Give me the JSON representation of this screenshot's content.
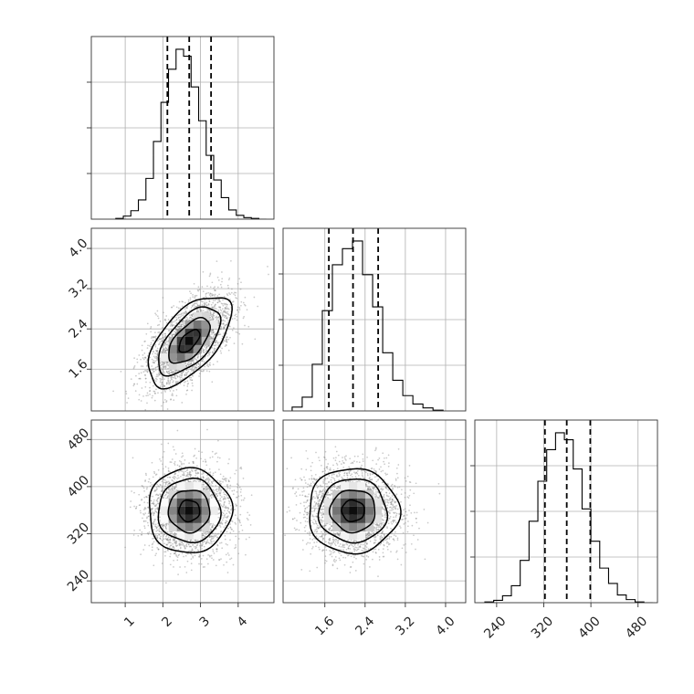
{
  "chart_data": {
    "type": "corner",
    "grid": true,
    "parameters": [
      {
        "label": "",
        "range": [
          0.1,
          4.95
        ],
        "ticks": [
          1,
          2,
          3,
          4
        ],
        "tick_labels": [
          "1",
          "2",
          "3",
          "4"
        ],
        "quantiles": [
          2.12,
          2.7,
          3.28
        ],
        "hist": {
          "bins": [
            0.75,
            0.95,
            1.15,
            1.35,
            1.55,
            1.75,
            1.95,
            2.15,
            2.35,
            2.55,
            2.75,
            2.95,
            3.15,
            3.35,
            3.55,
            3.75,
            3.95,
            4.15,
            4.35,
            4.55,
            4.75
          ],
          "counts": [
            1,
            4,
            11,
            25,
            53,
            101,
            152,
            195,
            221,
            212,
            172,
            128,
            83,
            51,
            28,
            12,
            5,
            2,
            1,
            0
          ]
        }
      },
      {
        "label": "",
        "range": [
          0.77,
          4.4
        ],
        "ticks": [
          1.6,
          2.4,
          3.2,
          4.0
        ],
        "tick_labels": [
          "1.6",
          "2.4",
          "3.2",
          "4.0"
        ],
        "quantiles": [
          1.68,
          2.16,
          2.66
        ],
        "hist": {
          "bins": [
            0.95,
            1.15,
            1.35,
            1.55,
            1.75,
            1.95,
            2.15,
            2.35,
            2.55,
            2.75,
            2.95,
            3.15,
            3.35,
            3.55,
            3.75,
            3.95
          ],
          "counts": [
            5,
            18,
            61,
            131,
            191,
            212,
            222,
            178,
            136,
            76,
            40,
            20,
            9,
            4,
            1
          ]
        }
      },
      {
        "label": "",
        "range": [
          203,
          513
        ],
        "ticks": [
          240,
          320,
          400,
          480
        ],
        "tick_labels": [
          "240",
          "320",
          "400",
          "480"
        ],
        "quantiles": [
          322,
          359,
          399
        ],
        "hist": {
          "bins": [
            220,
            235,
            250,
            265,
            280,
            295,
            310,
            325,
            340,
            355,
            370,
            385,
            400,
            415,
            430,
            445,
            460,
            475,
            490,
            505
          ],
          "counts": [
            1,
            3,
            9,
            22,
            55,
            106,
            158,
            199,
            221,
            212,
            174,
            122,
            80,
            45,
            25,
            10,
            4,
            1,
            0
          ]
        }
      }
    ],
    "pairs": [
      {
        "x": 0,
        "y": 1,
        "mean": [
          2.7,
          2.16
        ],
        "sd": [
          0.55,
          0.45
        ],
        "corr": 0.6,
        "n": 2800
      },
      {
        "x": 0,
        "y": 2,
        "mean": [
          2.7,
          359
        ],
        "sd": [
          0.55,
          36
        ],
        "corr": 0.0,
        "n": 2800
      },
      {
        "x": 1,
        "y": 2,
        "mean": [
          2.16,
          359
        ],
        "sd": [
          0.45,
          36
        ],
        "corr": 0.0,
        "n": 2800
      }
    ],
    "contour_levels": [
      0.118,
      0.393,
      0.675,
      0.865
    ],
    "colors": {
      "samples": "#888888",
      "density_dark": "#000000",
      "density_light": "#ffffff",
      "grid": "#b0b0b0"
    }
  }
}
